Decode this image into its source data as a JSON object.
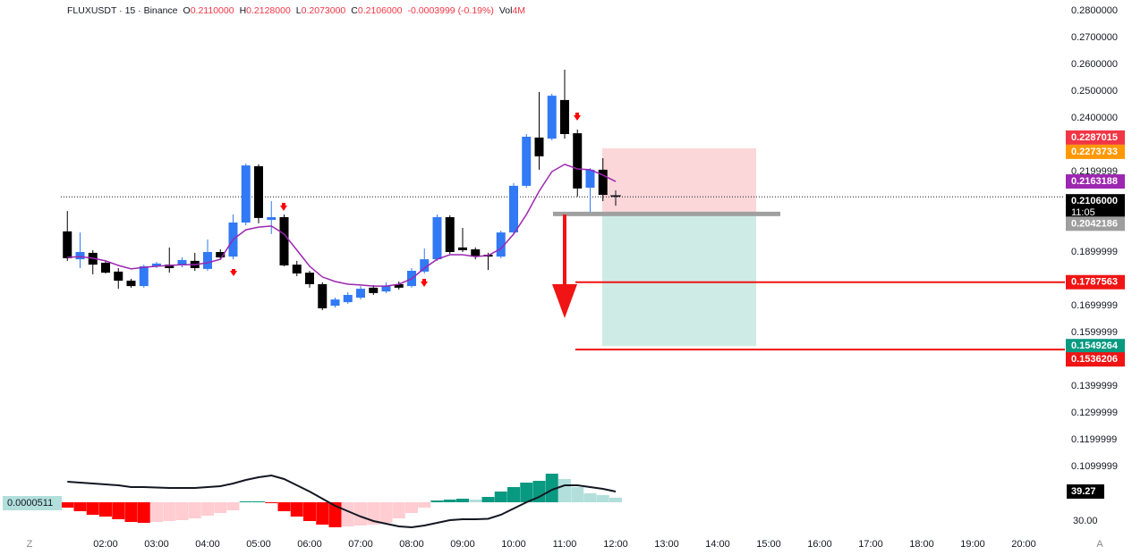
{
  "chart_data": {
    "type": "candlestick",
    "legend": {
      "symbol": "FLUXUSDT · 15 · Binance",
      "items": [
        {
          "key": "O",
          "value": "0.2110000"
        },
        {
          "key": "H",
          "value": "0.2128000"
        },
        {
          "key": "L",
          "value": "0.2073000"
        },
        {
          "key": "C",
          "value": "0.2106000"
        }
      ],
      "change": "-0.0003999 (-0.19%)",
      "volume_key": "Vol",
      "volume": "4M"
    },
    "x": [
      "01:15",
      "01:30",
      "01:45",
      "02:00",
      "02:15",
      "02:30",
      "02:45",
      "03:00",
      "03:15",
      "03:30",
      "03:45",
      "04:00",
      "04:15",
      "04:30",
      "04:45",
      "05:00",
      "05:15",
      "05:30",
      "05:45",
      "06:00",
      "06:15",
      "06:30",
      "06:45",
      "07:00",
      "07:15",
      "07:30",
      "07:45",
      "08:00",
      "08:15",
      "08:30",
      "08:45",
      "09:00",
      "09:15",
      "09:30",
      "09:45",
      "10:00",
      "10:15",
      "10:30",
      "10:45",
      "11:00",
      "11:15",
      "11:30",
      "11:45",
      "12:00"
    ],
    "open": [
      0.1977,
      0.1873,
      0.1897,
      0.186,
      0.1827,
      0.1793,
      0.1773,
      0.1847,
      0.1853,
      0.185,
      0.1867,
      0.1837,
      0.19,
      0.1883,
      0.201,
      0.222,
      0.202,
      0.203,
      0.1853,
      0.1823,
      0.178,
      0.17,
      0.1713,
      0.173,
      0.1767,
      0.1753,
      0.178,
      0.1773,
      0.1827,
      0.1873,
      0.203,
      0.1917,
      0.191,
      0.189,
      0.1883,
      0.1973,
      0.2147,
      0.2327,
      0.2323,
      0.2467,
      0.2343,
      0.214,
      0.2207,
      0.211
    ],
    "high": [
      0.2053,
      0.1973,
      0.1907,
      0.1867,
      0.184,
      0.18,
      0.1853,
      0.1863,
      0.1917,
      0.188,
      0.1897,
      0.1947,
      0.191,
      0.204,
      0.223,
      0.2227,
      0.209,
      0.204,
      0.1867,
      0.183,
      0.1787,
      0.173,
      0.175,
      0.1773,
      0.1777,
      0.1787,
      0.179,
      0.184,
      0.1913,
      0.204,
      0.2037,
      0.199,
      0.1917,
      0.1897,
      0.198,
      0.2157,
      0.234,
      0.2497,
      0.249,
      0.258,
      0.2357,
      0.2213,
      0.225,
      0.2128
    ],
    "low": [
      0.1867,
      0.184,
      0.1817,
      0.182,
      0.1763,
      0.1767,
      0.1767,
      0.184,
      0.1823,
      0.1843,
      0.183,
      0.183,
      0.1873,
      0.1873,
      0.2,
      0.2007,
      0.1967,
      0.1847,
      0.181,
      0.1767,
      0.1683,
      0.1693,
      0.1707,
      0.1723,
      0.174,
      0.1747,
      0.176,
      0.1767,
      0.182,
      0.1867,
      0.1893,
      0.19,
      0.1873,
      0.1833,
      0.1877,
      0.1967,
      0.214,
      0.2207,
      0.2317,
      0.2323,
      0.2107,
      0.205,
      0.209,
      0.2073
    ],
    "close": [
      0.1877,
      0.19,
      0.1853,
      0.1823,
      0.1793,
      0.1773,
      0.1847,
      0.1857,
      0.184,
      0.187,
      0.184,
      0.19,
      0.188,
      0.201,
      0.2223,
      0.2027,
      0.203,
      0.185,
      0.182,
      0.178,
      0.169,
      0.1723,
      0.174,
      0.1763,
      0.1747,
      0.1773,
      0.1767,
      0.183,
      0.1873,
      0.203,
      0.19,
      0.1907,
      0.1883,
      0.1883,
      0.1973,
      0.2147,
      0.233,
      0.2257,
      0.2483,
      0.234,
      0.2137,
      0.2207,
      0.2113,
      0.2106
    ],
    "up_color": "#3179f5",
    "down_color": "#000000",
    "ma": {
      "color": "#9c27b0",
      "values": [
        0.188,
        0.1883,
        0.1877,
        0.1867,
        0.185,
        0.1837,
        0.1843,
        0.1847,
        0.185,
        0.1853,
        0.1853,
        0.186,
        0.1873,
        0.1947,
        0.1983,
        0.1993,
        0.1997,
        0.1967,
        0.1907,
        0.1847,
        0.1807,
        0.179,
        0.178,
        0.1777,
        0.1773,
        0.1773,
        0.178,
        0.18,
        0.184,
        0.1873,
        0.189,
        0.189,
        0.1883,
        0.1887,
        0.1913,
        0.1967,
        0.204,
        0.2127,
        0.22,
        0.2227,
        0.221,
        0.2207,
        0.2187,
        0.2163
      ]
    },
    "xlim": [
      "00:00",
      "21:00"
    ],
    "xticks": [
      "02:00",
      "03:00",
      "04:00",
      "05:00",
      "06:00",
      "07:00",
      "08:00",
      "09:00",
      "10:00",
      "11:00",
      "12:00",
      "13:00",
      "14:00",
      "15:00",
      "16:00",
      "17:00",
      "18:00",
      "19:00",
      "20:00"
    ],
    "ylim": [
      0.105,
      0.285
    ],
    "yticks": [
      {
        "value": 0.28,
        "label": "0.2800000"
      },
      {
        "value": 0.27,
        "label": "0.2700000"
      },
      {
        "value": 0.26,
        "label": "0.2600000"
      },
      {
        "value": 0.25,
        "label": "0.2500000"
      },
      {
        "value": 0.24,
        "label": "0.2400000"
      },
      {
        "value": 0.2199999,
        "label": "0.2199999"
      },
      {
        "value": 0.1899999,
        "label": "0.1899999"
      },
      {
        "value": 0.1699999,
        "label": "0.1699999"
      },
      {
        "value": 0.1599999,
        "label": "0.1599999"
      },
      {
        "value": 0.1399999,
        "label": "0.1399999"
      },
      {
        "value": 0.1299999,
        "label": "0.1299999"
      },
      {
        "value": 0.1199999,
        "label": "0.1199999"
      },
      {
        "value": 0.1099999,
        "label": "0.1099999"
      }
    ],
    "price_labels": [
      {
        "value": 0.2287015,
        "label": "0.2287015",
        "color": "#f23645"
      },
      {
        "value": 0.2273733,
        "label": "0.2273733",
        "color": "#ff9800"
      },
      {
        "value": 0.2163188,
        "label": "0.2163188",
        "color": "#9c27b0"
      },
      {
        "value": 0.2106,
        "label": "0.2106000",
        "color": "#000000",
        "countdown": "11:05"
      },
      {
        "value": 0.2042186,
        "label": "0.2042186",
        "color": "#9e9e9e"
      },
      {
        "value": 0.1787563,
        "label": "0.1787563",
        "color": "#f01414"
      },
      {
        "value": 0.1549264,
        "label": "0.1549264",
        "color": "#089981"
      },
      {
        "value": 0.1536206,
        "label": "0.1536206",
        "color": "#f01414"
      }
    ],
    "position_tool": {
      "stop": 0.2287015,
      "entry": 0.2042186,
      "target": 0.1549264
    },
    "levels": [
      {
        "value": 0.1787563,
        "color": "#f01414"
      },
      {
        "value": 0.1536206,
        "color": "#f01414"
      }
    ],
    "oscillator": {
      "ylim": [
        28,
        46.3
      ],
      "yticks": [
        {
          "value": 30,
          "label": "30.00"
        }
      ],
      "last_label": {
        "value": 39.27,
        "label": "39.27"
      },
      "line": {
        "color": "#131722",
        "values": [
          42.36,
          42.08,
          41.8,
          41.51,
          41.23,
          40.67,
          40.67,
          40.53,
          40.39,
          40.39,
          40.39,
          40.67,
          40.95,
          41.8,
          42.92,
          43.77,
          44.33,
          43.2,
          41.23,
          39.26,
          37.01,
          34.76,
          33.07,
          31.38,
          29.97,
          29.13,
          28.28,
          28.0,
          28.56,
          29.41,
          30.25,
          30.53,
          30.53,
          30.67,
          31.94,
          33.91,
          35.88,
          37.57,
          39.82,
          41.23,
          41.23,
          40.67,
          40.11,
          39.27
        ]
      },
      "histogram": {
        "ylim": [
          -0.00028,
          0.00037
        ],
        "colors": [
          "#089981",
          "#b2dfdb",
          "#ff0000",
          "#ffcdd2"
        ],
        "values": [
          -6e-05,
          -0.0001,
          -0.00014,
          -0.00016,
          -0.00019,
          -0.00022,
          -0.00023,
          -0.00022,
          -0.00021,
          -0.0002,
          -0.00018,
          -0.00015,
          -0.00012,
          -9e-05,
          1e-05,
          1e-05,
          -1e-05,
          -0.0001,
          -0.00016,
          -0.00021,
          -0.00025,
          -0.00028,
          -0.00027,
          -0.00026,
          -0.00025,
          -0.00023,
          -0.00018,
          -0.00012,
          -6e-05,
          2e-05,
          3e-05,
          4e-05,
          3e-05,
          6e-05,
          0.00012,
          0.00017,
          0.00022,
          0.00024,
          0.00032,
          0.00026,
          0.00017,
          0.0001,
          8e-05,
          5.11e-05
        ],
        "last_value_label": "0.0000511"
      }
    }
  }
}
